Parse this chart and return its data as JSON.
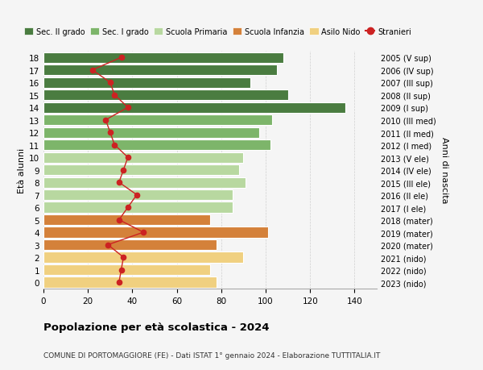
{
  "ages": [
    18,
    17,
    16,
    15,
    14,
    13,
    12,
    11,
    10,
    9,
    8,
    7,
    6,
    5,
    4,
    3,
    2,
    1,
    0
  ],
  "years_labels": [
    "2005 (V sup)",
    "2006 (IV sup)",
    "2007 (III sup)",
    "2008 (II sup)",
    "2009 (I sup)",
    "2010 (III med)",
    "2011 (II med)",
    "2012 (I med)",
    "2013 (V ele)",
    "2014 (IV ele)",
    "2015 (III ele)",
    "2016 (II ele)",
    "2017 (I ele)",
    "2018 (mater)",
    "2019 (mater)",
    "2020 (mater)",
    "2021 (nido)",
    "2022 (nido)",
    "2023 (nido)"
  ],
  "bar_values": [
    108,
    105,
    93,
    110,
    136,
    103,
    97,
    102,
    90,
    88,
    91,
    85,
    85,
    75,
    101,
    78,
    90,
    75,
    78
  ],
  "stranieri_values": [
    35,
    22,
    30,
    32,
    38,
    28,
    30,
    32,
    38,
    36,
    34,
    42,
    38,
    34,
    45,
    29,
    36,
    35,
    34
  ],
  "bar_colors": [
    "#4a7c40",
    "#4a7c40",
    "#4a7c40",
    "#4a7c40",
    "#4a7c40",
    "#7db56a",
    "#7db56a",
    "#7db56a",
    "#b8d8a0",
    "#b8d8a0",
    "#b8d8a0",
    "#b8d8a0",
    "#b8d8a0",
    "#d4813a",
    "#d4813a",
    "#d4813a",
    "#f0d080",
    "#f0d080",
    "#f0d080"
  ],
  "legend_labels": [
    "Sec. II grado",
    "Sec. I grado",
    "Scuola Primaria",
    "Scuola Infanzia",
    "Asilo Nido",
    "Stranieri"
  ],
  "legend_colors": [
    "#4a7c40",
    "#7db56a",
    "#b8d8a0",
    "#d4813a",
    "#f0d080",
    "#cc2222"
  ],
  "stranieri_color": "#cc2222",
  "ylabel_left": "Età alunni",
  "ylabel_right": "Anni di nascita",
  "xlim": [
    0,
    150
  ],
  "xticks": [
    0,
    20,
    40,
    60,
    80,
    100,
    120,
    140
  ],
  "title": "Popolazione per età scolastica - 2024",
  "subtitle": "COMUNE DI PORTOMAGGIORE (FE) - Dati ISTAT 1° gennaio 2024 - Elaborazione TUTTITALIA.IT",
  "bg_color": "#f5f5f5",
  "bar_edge_color": "#ffffff"
}
